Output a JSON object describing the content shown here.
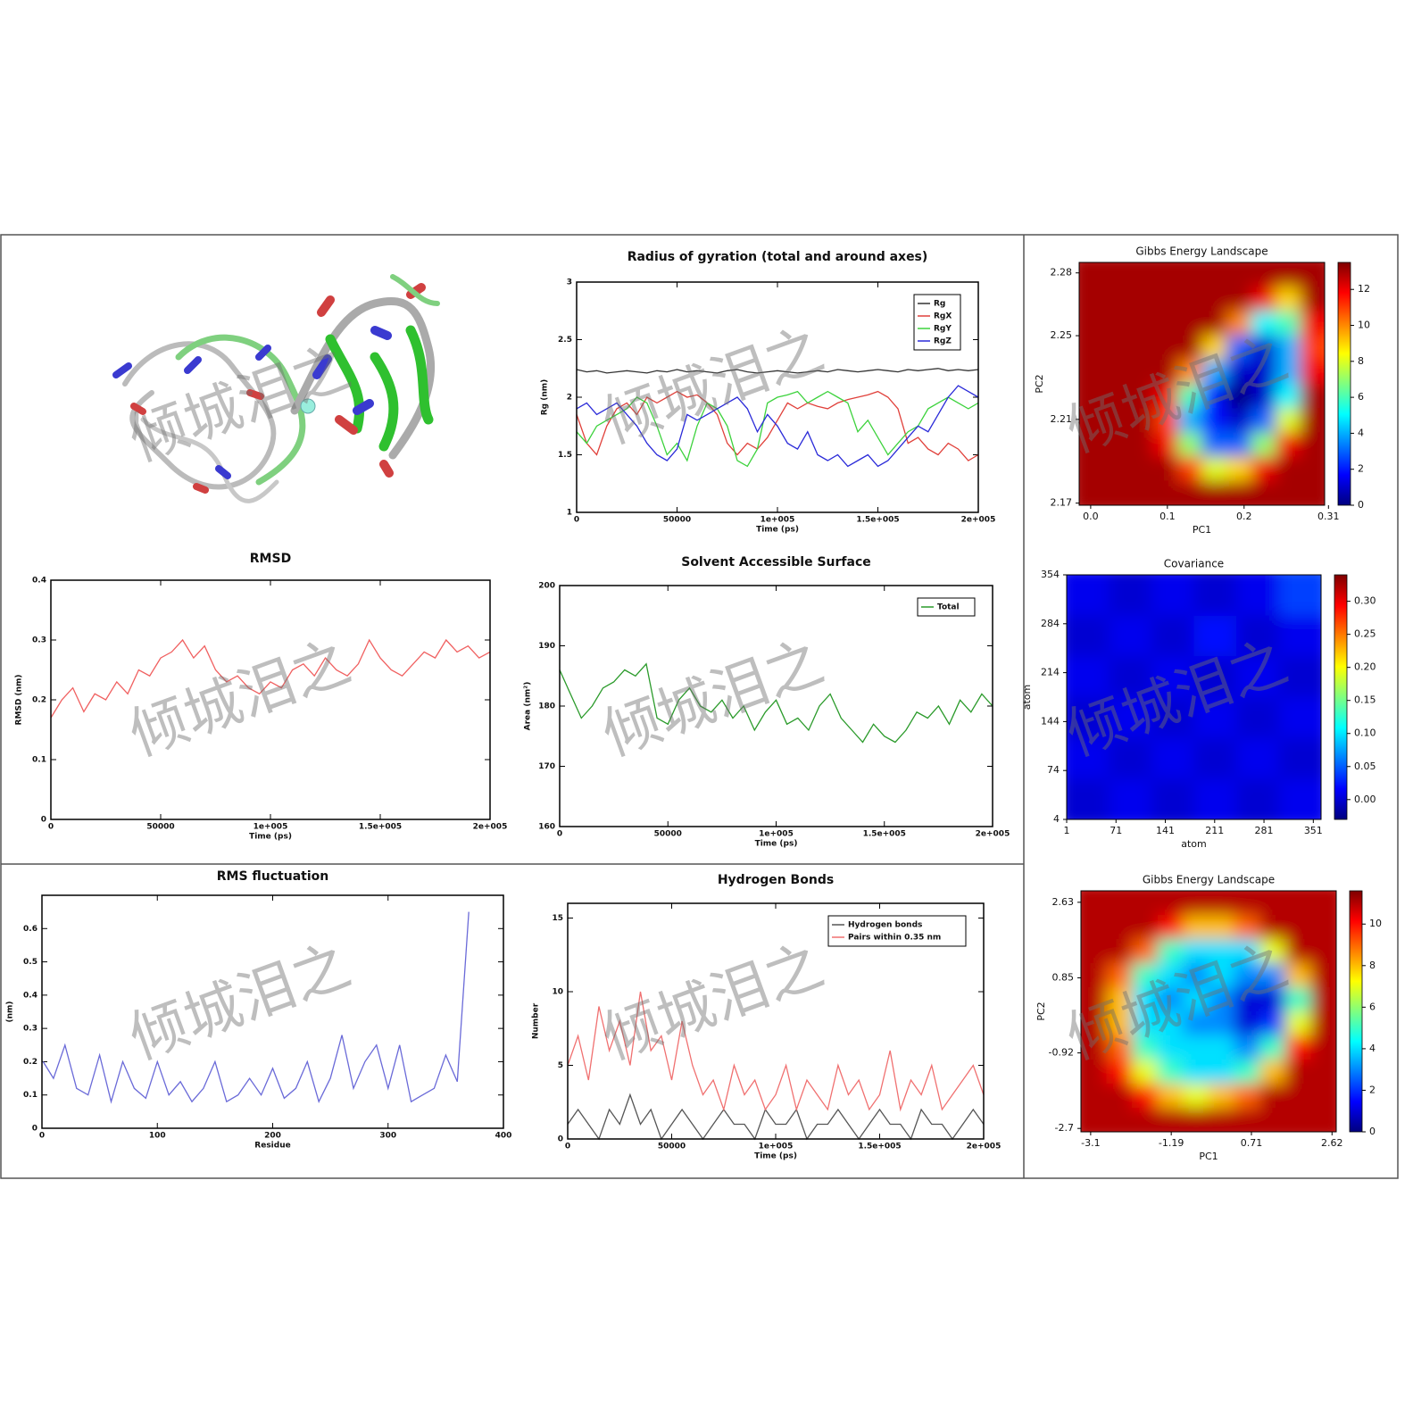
{
  "watermark": "倾城泪之",
  "chart_data": [
    {
      "type": "line",
      "title": "Radius of gyration (total and around axes)",
      "xlabel": "Time (ps)",
      "ylabel": "Rg (nm)",
      "xlim": [
        0,
        200000
      ],
      "xticks": [
        0,
        50000,
        {
          "value": 100000,
          "label": "1e+005"
        },
        {
          "value": 150000,
          "label": "1.5e+005"
        },
        {
          "value": 200000,
          "label": "2e+005"
        }
      ],
      "ylim": [
        1,
        3
      ],
      "yticks": [
        1,
        1.5,
        2,
        2.5,
        3
      ],
      "legend": "upper right",
      "x": [
        0,
        5000,
        10000,
        15000,
        20000,
        25000,
        30000,
        35000,
        40000,
        45000,
        50000,
        55000,
        60000,
        65000,
        70000,
        75000,
        80000,
        85000,
        90000,
        95000,
        100000,
        105000,
        110000,
        115000,
        120000,
        125000,
        130000,
        135000,
        140000,
        145000,
        150000,
        155000,
        160000,
        165000,
        170000,
        175000,
        180000,
        185000,
        190000,
        195000,
        200000
      ],
      "series": [
        {
          "name": "Rg",
          "color": "#333333",
          "values": [
            2.24,
            2.22,
            2.23,
            2.21,
            2.22,
            2.23,
            2.22,
            2.21,
            2.23,
            2.22,
            2.24,
            2.22,
            2.23,
            2.22,
            2.21,
            2.23,
            2.24,
            2.22,
            2.21,
            2.22,
            2.23,
            2.22,
            2.21,
            2.22,
            2.23,
            2.22,
            2.24,
            2.23,
            2.22,
            2.23,
            2.24,
            2.23,
            2.22,
            2.24,
            2.23,
            2.24,
            2.25,
            2.23,
            2.24,
            2.23,
            2.24
          ]
        },
        {
          "name": "RgX",
          "color": "#e0403a",
          "values": [
            1.85,
            1.6,
            1.5,
            1.75,
            1.9,
            1.95,
            1.85,
            2.0,
            1.95,
            2.0,
            2.05,
            2.0,
            2.02,
            1.95,
            1.85,
            1.6,
            1.5,
            1.6,
            1.55,
            1.65,
            1.8,
            1.95,
            1.9,
            1.95,
            1.92,
            1.9,
            1.95,
            1.98,
            2.0,
            2.02,
            2.05,
            2.0,
            1.9,
            1.6,
            1.65,
            1.55,
            1.5,
            1.6,
            1.55,
            1.45,
            1.5
          ]
        },
        {
          "name": "RgY",
          "color": "#3cd23c",
          "values": [
            1.7,
            1.6,
            1.75,
            1.8,
            1.85,
            1.9,
            2.0,
            1.95,
            1.75,
            1.5,
            1.6,
            1.45,
            1.75,
            1.95,
            1.9,
            1.75,
            1.45,
            1.4,
            1.55,
            1.95,
            2.0,
            2.02,
            2.05,
            1.95,
            2.0,
            2.05,
            2.0,
            1.95,
            1.7,
            1.8,
            1.65,
            1.5,
            1.6,
            1.7,
            1.75,
            1.9,
            1.95,
            2.0,
            1.95,
            1.9,
            1.95
          ]
        },
        {
          "name": "RgZ",
          "color": "#2a2ad8",
          "values": [
            1.9,
            1.95,
            1.85,
            1.9,
            1.95,
            1.85,
            1.75,
            1.6,
            1.5,
            1.45,
            1.55,
            1.85,
            1.8,
            1.85,
            1.9,
            1.95,
            2.0,
            1.9,
            1.7,
            1.85,
            1.75,
            1.6,
            1.55,
            1.7,
            1.5,
            1.45,
            1.5,
            1.4,
            1.45,
            1.5,
            1.4,
            1.45,
            1.55,
            1.65,
            1.75,
            1.7,
            1.85,
            2.0,
            2.1,
            2.05,
            2.0
          ]
        }
      ]
    },
    {
      "type": "line",
      "title": "RMSD",
      "xlabel": "Time (ps)",
      "ylabel": "RMSD (nm)",
      "xlim": [
        0,
        200000
      ],
      "xticks": [
        0,
        50000,
        {
          "value": 100000,
          "label": "1e+005"
        },
        {
          "value": 150000,
          "label": "1.5e+005"
        },
        {
          "value": 200000,
          "label": "2e+005"
        }
      ],
      "ylim": [
        0,
        0.4
      ],
      "yticks": [
        0,
        0.1,
        0.2,
        0.3,
        0.4
      ],
      "x": [
        0,
        5000,
        10000,
        15000,
        20000,
        25000,
        30000,
        35000,
        40000,
        45000,
        50000,
        55000,
        60000,
        65000,
        70000,
        75000,
        80000,
        85000,
        90000,
        95000,
        100000,
        105000,
        110000,
        115000,
        120000,
        125000,
        130000,
        135000,
        140000,
        145000,
        150000,
        155000,
        160000,
        165000,
        170000,
        175000,
        180000,
        185000,
        190000,
        195000,
        200000
      ],
      "series": [
        {
          "color": "#f06060",
          "values": [
            0.17,
            0.2,
            0.22,
            0.18,
            0.21,
            0.2,
            0.23,
            0.21,
            0.25,
            0.24,
            0.27,
            0.28,
            0.3,
            0.27,
            0.29,
            0.25,
            0.23,
            0.24,
            0.22,
            0.21,
            0.23,
            0.22,
            0.25,
            0.26,
            0.24,
            0.27,
            0.25,
            0.24,
            0.26,
            0.3,
            0.27,
            0.25,
            0.24,
            0.26,
            0.28,
            0.27,
            0.3,
            0.28,
            0.29,
            0.27,
            0.28
          ]
        }
      ]
    },
    {
      "type": "line",
      "title": "Solvent Accessible Surface",
      "xlabel": "Time (ps)",
      "ylabel": "Area (nm²)",
      "xlim": [
        0,
        200000
      ],
      "xticks": [
        0,
        50000,
        {
          "value": 100000,
          "label": "1e+005"
        },
        {
          "value": 150000,
          "label": "1.5e+005"
        },
        {
          "value": 200000,
          "label": "2e+005"
        }
      ],
      "ylim": [
        160,
        200
      ],
      "yticks": [
        160,
        170,
        180,
        190,
        200
      ],
      "legend": "upper right",
      "x": [
        0,
        5000,
        10000,
        15000,
        20000,
        25000,
        30000,
        35000,
        40000,
        45000,
        50000,
        55000,
        60000,
        65000,
        70000,
        75000,
        80000,
        85000,
        90000,
        95000,
        100000,
        105000,
        110000,
        115000,
        120000,
        125000,
        130000,
        135000,
        140000,
        145000,
        150000,
        155000,
        160000,
        165000,
        170000,
        175000,
        180000,
        185000,
        190000,
        195000,
        200000
      ],
      "series": [
        {
          "name": "Total",
          "color": "#2a9a2a",
          "values": [
            186,
            182,
            178,
            180,
            183,
            184,
            186,
            185,
            187,
            178,
            177,
            181,
            183,
            180,
            179,
            181,
            178,
            180,
            176,
            179,
            181,
            177,
            178,
            176,
            180,
            182,
            178,
            176,
            174,
            177,
            175,
            174,
            176,
            179,
            178,
            180,
            177,
            181,
            179,
            182,
            180
          ]
        }
      ]
    },
    {
      "type": "line",
      "title": "RMS fluctuation",
      "xlabel": "Residue",
      "ylabel": "(nm)",
      "xlim": [
        0,
        400
      ],
      "xticks": [
        0,
        100,
        200,
        300,
        400
      ],
      "ylim": [
        0,
        0.7
      ],
      "yticks": [
        0,
        0.1,
        0.2,
        0.3,
        0.4,
        0.5,
        0.6
      ],
      "x": [
        1,
        10,
        20,
        30,
        40,
        50,
        60,
        70,
        80,
        90,
        100,
        110,
        120,
        130,
        140,
        150,
        160,
        170,
        180,
        190,
        200,
        210,
        220,
        230,
        240,
        250,
        260,
        270,
        280,
        290,
        300,
        310,
        320,
        330,
        340,
        350,
        360,
        370
      ],
      "series": [
        {
          "color": "#6a6ad8",
          "values": [
            0.2,
            0.15,
            0.25,
            0.12,
            0.1,
            0.22,
            0.08,
            0.2,
            0.12,
            0.09,
            0.2,
            0.1,
            0.14,
            0.08,
            0.12,
            0.2,
            0.08,
            0.1,
            0.15,
            0.1,
            0.18,
            0.09,
            0.12,
            0.2,
            0.08,
            0.15,
            0.28,
            0.12,
            0.2,
            0.25,
            0.12,
            0.25,
            0.08,
            0.1,
            0.12,
            0.22,
            0.14,
            0.65
          ]
        }
      ]
    },
    {
      "type": "line",
      "title": "Hydrogen Bonds",
      "xlabel": "Time (ps)",
      "ylabel": "Number",
      "xlim": [
        0,
        200000
      ],
      "xticks": [
        0,
        50000,
        {
          "value": 100000,
          "label": "1e+005"
        },
        {
          "value": 150000,
          "label": "1.5e+005"
        },
        {
          "value": 200000,
          "label": "2e+005"
        }
      ],
      "ylim": [
        0,
        16
      ],
      "yticks": [
        0,
        5,
        10,
        15
      ],
      "legend": "upper right",
      "x": [
        0,
        5000,
        10000,
        15000,
        20000,
        25000,
        30000,
        35000,
        40000,
        45000,
        50000,
        55000,
        60000,
        65000,
        70000,
        75000,
        80000,
        85000,
        90000,
        95000,
        100000,
        105000,
        110000,
        115000,
        120000,
        125000,
        130000,
        135000,
        140000,
        145000,
        150000,
        155000,
        160000,
        165000,
        170000,
        175000,
        180000,
        185000,
        190000,
        195000,
        200000
      ],
      "series": [
        {
          "name": "Hydrogen bonds",
          "color": "#555555",
          "values": [
            1,
            2,
            1,
            0,
            2,
            1,
            3,
            1,
            2,
            0,
            1,
            2,
            1,
            0,
            1,
            2,
            1,
            1,
            0,
            2,
            1,
            1,
            2,
            0,
            1,
            1,
            2,
            1,
            0,
            1,
            2,
            1,
            1,
            0,
            2,
            1,
            1,
            0,
            1,
            2,
            1
          ]
        },
        {
          "name": "Pairs within 0.35 nm",
          "color": "#f07070",
          "values": [
            5,
            7,
            4,
            9,
            6,
            8,
            5,
            10,
            6,
            7,
            4,
            8,
            5,
            3,
            4,
            2,
            5,
            3,
            4,
            2,
            3,
            5,
            2,
            4,
            3,
            2,
            5,
            3,
            4,
            2,
            3,
            6,
            2,
            4,
            3,
            5,
            2,
            3,
            4,
            5,
            3
          ]
        }
      ]
    },
    {
      "type": "heatmap",
      "title": "Gibbs Energy Landscape",
      "xlabel": "PC1",
      "ylabel": "PC2",
      "colormap": "jet",
      "xlim": [
        -0.015,
        0.305
      ],
      "xticks": [
        {
          "value": 0,
          "label": "0.0"
        },
        0.1,
        0.2,
        0.31
      ],
      "ylim": [
        2.169,
        2.285
      ],
      "yticks": [
        2.17,
        2.21,
        2.25,
        2.28
      ],
      "clim": [
        0,
        13.5
      ],
      "cticks": [
        0,
        2,
        4,
        6,
        8,
        10,
        12
      ],
      "z": [
        [
          13,
          13,
          13,
          13,
          13,
          13,
          13,
          13,
          13,
          13
        ],
        [
          13,
          13,
          13,
          13,
          13,
          13,
          13,
          12,
          9,
          13
        ],
        [
          13,
          13,
          13,
          13,
          13,
          13,
          10,
          5,
          6,
          12
        ],
        [
          13,
          13,
          13,
          13,
          13,
          9,
          3,
          1,
          4,
          11
        ],
        [
          13,
          13,
          13,
          13,
          10,
          4,
          1,
          1,
          4,
          12
        ],
        [
          13,
          13,
          13,
          12,
          6,
          2,
          0,
          1,
          5,
          13
        ],
        [
          13,
          13,
          13,
          11,
          4,
          2,
          1,
          3,
          8,
          13
        ],
        [
          13,
          13,
          13,
          12,
          7,
          3,
          3,
          7,
          12,
          13
        ],
        [
          13,
          13,
          13,
          13,
          11,
          8,
          9,
          12,
          13,
          13
        ],
        [
          13,
          13,
          13,
          13,
          13,
          13,
          13,
          13,
          13,
          13
        ]
      ]
    },
    {
      "type": "heatmap",
      "title": "Covariance",
      "xlabel": "atom",
      "ylabel": "atom",
      "colormap": "jet",
      "xlim": [
        1,
        362
      ],
      "xticks": [
        1,
        71,
        141,
        211,
        281,
        351
      ],
      "ylim": [
        4,
        354
      ],
      "yticks": [
        4,
        74,
        144,
        214,
        284,
        354
      ],
      "clim": [
        -0.03,
        0.34
      ],
      "cticks": [
        {
          "value": 0,
          "label": "0.00"
        },
        0.05,
        {
          "value": 0.1,
          "label": "0.10"
        },
        0.15,
        {
          "value": 0.2,
          "label": "0.20"
        },
        0.25,
        {
          "value": 0.3,
          "label": "0.30"
        }
      ],
      "z": [
        [
          0.01,
          0.0,
          0.01,
          0.0,
          0.01,
          0.04
        ],
        [
          0.0,
          0.01,
          0.0,
          0.02,
          0.0,
          0.01
        ],
        [
          0.01,
          0.0,
          0.01,
          0.0,
          0.01,
          0.0
        ],
        [
          0.0,
          0.01,
          0.0,
          0.01,
          0.0,
          0.01
        ],
        [
          0.01,
          0.0,
          0.01,
          0.0,
          0.01,
          0.0
        ],
        [
          0.0,
          0.01,
          0.0,
          0.01,
          0.0,
          0.01
        ]
      ]
    },
    {
      "type": "heatmap",
      "title": "Gibbs Energy Landscape",
      "xlabel": "PC1",
      "ylabel": "PC2",
      "colormap": "jet",
      "xlim": [
        -3.33,
        2.72
      ],
      "xticks": [
        -3.1,
        -1.19,
        0.71,
        2.62
      ],
      "ylim": [
        -2.78,
        2.9
      ],
      "yticks": [
        -2.7,
        -0.92,
        0.85,
        2.63
      ],
      "clim": [
        0,
        11.6
      ],
      "cticks": [
        0,
        2,
        4,
        6,
        8,
        10
      ],
      "z": [
        [
          11,
          11,
          11,
          11,
          11,
          11,
          11,
          11,
          11,
          11
        ],
        [
          11,
          11,
          11,
          10,
          8,
          8,
          9,
          11,
          11,
          11
        ],
        [
          11,
          11,
          9,
          5,
          4,
          4,
          4,
          7,
          11,
          11
        ],
        [
          11,
          9,
          5,
          4,
          3,
          4,
          3,
          3,
          8,
          11
        ],
        [
          11,
          8,
          4,
          3,
          4,
          3,
          1,
          1,
          5,
          11
        ],
        [
          11,
          8,
          4,
          4,
          3,
          3,
          1,
          2,
          7,
          11
        ],
        [
          11,
          9,
          5,
          4,
          4,
          4,
          3,
          5,
          10,
          11
        ],
        [
          11,
          10,
          7,
          5,
          4,
          4,
          5,
          8,
          11,
          11
        ],
        [
          11,
          11,
          10,
          8,
          7,
          8,
          9,
          11,
          11,
          11
        ],
        [
          11,
          11,
          11,
          11,
          11,
          11,
          11,
          11,
          11,
          11
        ]
      ]
    }
  ]
}
